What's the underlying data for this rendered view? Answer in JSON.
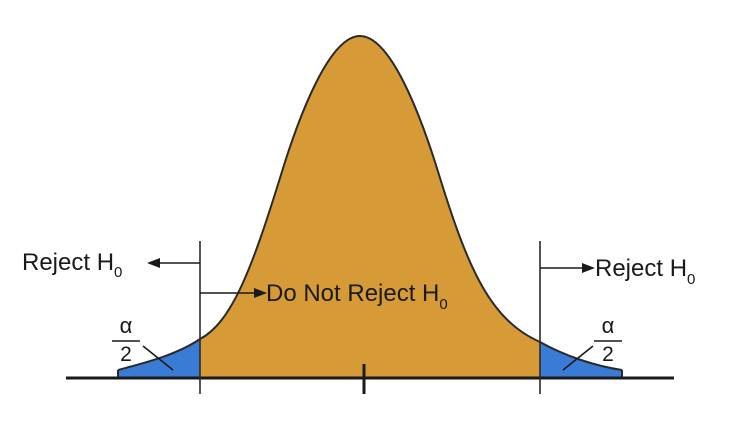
{
  "diagram": {
    "labels": {
      "reject_left": "Reject H",
      "reject_right": "Reject H",
      "do_not_reject": "Do Not Reject H",
      "subscript": "0"
    },
    "tail_fraction": {
      "numerator": "α",
      "denominator": "2"
    },
    "colors": {
      "acceptance_region": "#d69a36",
      "rejection_region": "#3a7bd5",
      "curve_stroke": "#2a2a2a",
      "axis": "#1a1a1a"
    }
  }
}
